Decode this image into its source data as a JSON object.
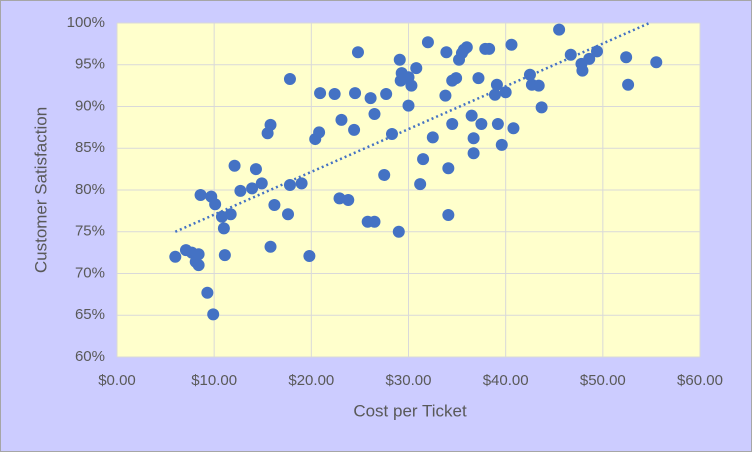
{
  "chart_data": {
    "type": "scatter",
    "x_label": "Cost per Ticket",
    "y_label": "Customer Satisfaction",
    "color": "#4472c4",
    "grid": true,
    "xlim": [
      0,
      60
    ],
    "ylim": [
      60,
      100
    ],
    "xticks": [
      {
        "value": 0,
        "label": "$0.00"
      },
      {
        "value": 10,
        "label": "$10.00"
      },
      {
        "value": 20,
        "label": "$20.00"
      },
      {
        "value": 30,
        "label": "$30.00"
      },
      {
        "value": 40,
        "label": "$40.00"
      },
      {
        "value": 50,
        "label": "$50.00"
      },
      {
        "value": 60,
        "label": "$60.00"
      }
    ],
    "yticks": [
      {
        "value": 60,
        "label": "60%"
      },
      {
        "value": 65,
        "label": "65%"
      },
      {
        "value": 70,
        "label": "70%"
      },
      {
        "value": 75,
        "label": "75%"
      },
      {
        "value": 80,
        "label": "80%"
      },
      {
        "value": 85,
        "label": "85%"
      },
      {
        "value": 90,
        "label": "90%"
      },
      {
        "value": 95,
        "label": "95%"
      },
      {
        "value": 100,
        "label": "100%"
      }
    ],
    "x": [
      6.0,
      7.1,
      7.7,
      8.1,
      8.4,
      8.4,
      8.6,
      9.3,
      9.7,
      9.9,
      10.1,
      10.8,
      11.0,
      11.1,
      11.7,
      12.1,
      12.7,
      13.9,
      14.3,
      14.9,
      15.5,
      15.8,
      15.8,
      16.2,
      17.6,
      17.8,
      17.8,
      19.0,
      19.8,
      20.4,
      20.8,
      20.9,
      22.4,
      22.9,
      23.1,
      23.8,
      24.4,
      24.5,
      24.8,
      25.8,
      26.1,
      26.5,
      26.5,
      27.5,
      27.7,
      28.3,
      29.0,
      29.1,
      29.2,
      29.3,
      29.6,
      30.0,
      30.0,
      30.3,
      30.8,
      31.2,
      31.5,
      32.0,
      32.5,
      33.8,
      33.9,
      34.1,
      34.1,
      34.5,
      34.5,
      34.9,
      35.2,
      35.5,
      35.7,
      36.0,
      36.5,
      36.7,
      36.7,
      37.2,
      37.5,
      37.9,
      38.3,
      38.9,
      39.1,
      39.2,
      39.6,
      40.0,
      40.6,
      40.8,
      42.5,
      42.7,
      43.4,
      43.7,
      45.5,
      46.7,
      47.8,
      47.9,
      48.6,
      49.4,
      52.4,
      52.6,
      55.5
    ],
    "values": [
      72.0,
      72.8,
      72.5,
      71.4,
      72.3,
      71.0,
      79.4,
      67.7,
      79.2,
      65.1,
      78.3,
      76.8,
      75.4,
      72.2,
      77.1,
      82.9,
      79.9,
      80.2,
      82.5,
      80.8,
      86.8,
      87.8,
      73.2,
      78.2,
      77.1,
      93.3,
      80.6,
      80.8,
      72.1,
      86.1,
      86.9,
      91.6,
      91.5,
      79.0,
      88.4,
      78.8,
      87.2,
      91.6,
      96.5,
      76.2,
      91.0,
      76.2,
      89.1,
      81.8,
      91.5,
      86.7,
      75.0,
      95.6,
      93.1,
      94.0,
      93.5,
      90.1,
      93.5,
      92.5,
      94.6,
      80.7,
      83.7,
      97.7,
      86.3,
      91.3,
      96.5,
      82.6,
      77.0,
      87.9,
      93.1,
      93.4,
      95.6,
      96.4,
      96.8,
      97.1,
      88.9,
      86.2,
      84.4,
      93.4,
      87.9,
      96.9,
      96.9,
      91.4,
      92.6,
      87.9,
      85.4,
      91.7,
      97.4,
      87.4,
      93.8,
      92.6,
      92.5,
      89.9,
      99.2,
      96.2,
      95.1,
      94.3,
      95.7,
      96.6,
      95.9,
      92.6,
      95.3
    ],
    "trendline": {
      "x": [
        6.0,
        54.8
      ],
      "y": [
        75.0,
        100
      ]
    }
  }
}
